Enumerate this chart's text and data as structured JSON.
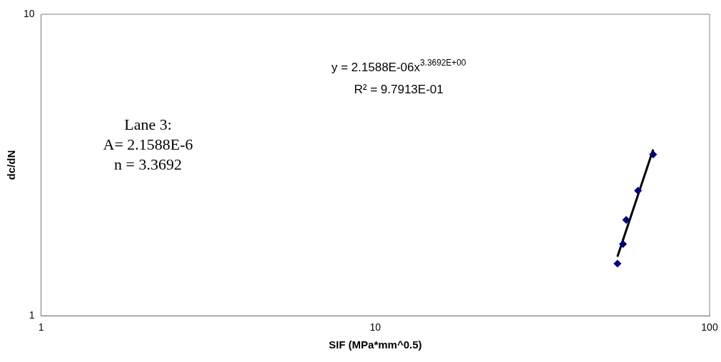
{
  "chart_data": {
    "type": "scatter",
    "xlabel": "SIF (MPa*mm^0.5)",
    "ylabel": "dc/dN",
    "log": "xy",
    "xlim": [
      1,
      100
    ],
    "xticks": [
      1,
      10,
      100
    ],
    "ylim": [
      1,
      10
    ],
    "yticks": [
      1,
      10
    ],
    "grid": false,
    "legend": false,
    "marker": "diamond",
    "series": [
      {
        "type": "scatter",
        "color": "#000080",
        "x": [
          53.0,
          55.1,
          56.3,
          61.1,
          67.8
        ],
        "values": [
          1.49,
          1.73,
          2.08,
          2.6,
          3.43
        ]
      },
      {
        "type": "line",
        "color": "#000000",
        "line_style": "solid",
        "marker": "none",
        "x": [
          53.0,
          67.8
        ],
        "values": [
          1.57,
          3.56
        ]
      }
    ],
    "annotations": [
      "y = 2.1588E-06x$^{3.3692E+00}$",
      "R² = 9.7913E-01",
      "Lane 3:",
      "A= 2.1588E-6",
      "n = 3.3692"
    ]
  }
}
